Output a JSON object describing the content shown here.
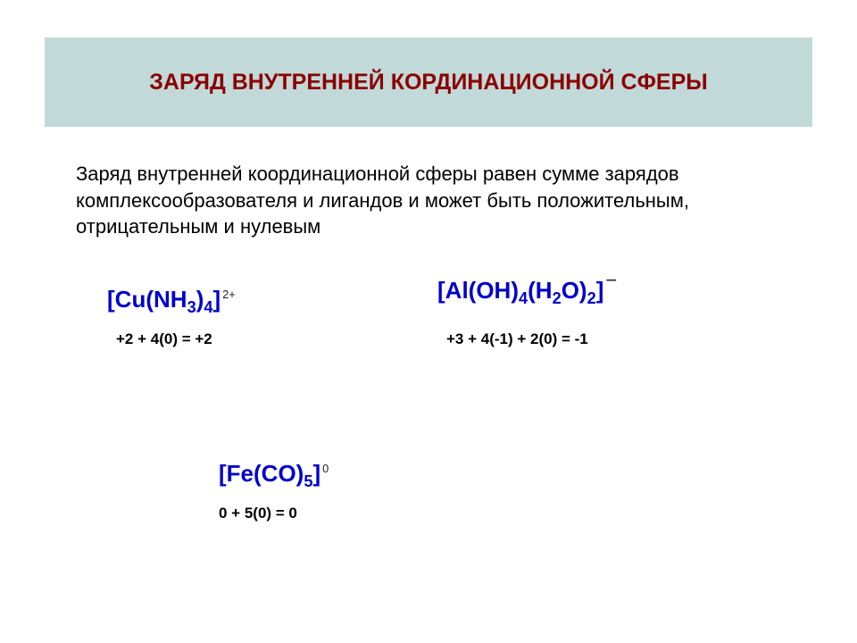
{
  "title": "ЗАРЯД ВНУТРЕННЕЙ КОРДИНАЦИОННОЙ СФЕРЫ",
  "description": "Заряд внутренней координационной сферы равен сумме зарядов комплексообразователя и лигандов и может быть положительным, отрицательным и нулевым",
  "formulas": {
    "f1": {
      "open": "[",
      "metal": "Cu",
      "ligand1": "(NH",
      "sub1": "3",
      "close1": ")",
      "sub2": "4",
      "close": "]",
      "charge": "2+",
      "calc": "+2 + 4(0) = +2"
    },
    "f2": {
      "open": "[",
      "metal": "Al",
      "ligand1": "(OH)",
      "sub1": "4",
      "ligand2": "(H",
      "sub2": "2",
      "oxygen": "O)",
      "sub3": "2",
      "close": "]",
      "charge": "−",
      "calc": "+3 + 4(-1) + 2(0) = -1"
    },
    "f3": {
      "open": "[",
      "metal": "Fe",
      "ligand1": "(CO)",
      "sub1": "5",
      "close": "]",
      "charge": "0",
      "calc": "0 + 5(0) = 0"
    }
  },
  "colors": {
    "title_bg": "#c2d9d9",
    "title_text": "#8b0000",
    "formula_color": "#0000cc",
    "body_text": "#000000",
    "background": "#ffffff"
  }
}
